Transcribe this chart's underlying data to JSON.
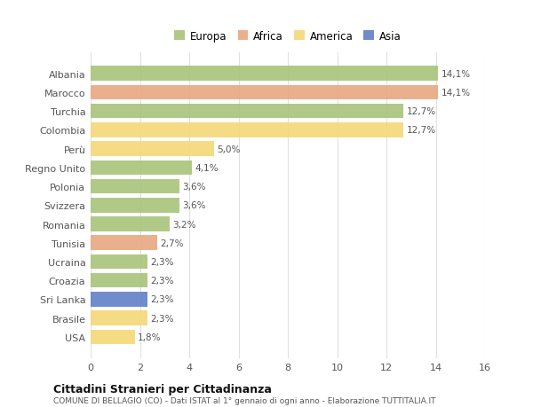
{
  "categories": [
    "Albania",
    "Marocco",
    "Turchia",
    "Colombia",
    "Perù",
    "Regno Unito",
    "Polonia",
    "Svizzera",
    "Romania",
    "Tunisia",
    "Ucraina",
    "Croazia",
    "Sri Lanka",
    "Brasile",
    "USA"
  ],
  "values": [
    14.1,
    14.1,
    12.7,
    12.7,
    5.0,
    4.1,
    3.6,
    3.6,
    3.2,
    2.7,
    2.3,
    2.3,
    2.3,
    2.3,
    1.8
  ],
  "labels": [
    "14,1%",
    "14,1%",
    "12,7%",
    "12,7%",
    "5,0%",
    "4,1%",
    "3,6%",
    "3,6%",
    "3,2%",
    "2,7%",
    "2,3%",
    "2,3%",
    "2,3%",
    "2,3%",
    "1,8%"
  ],
  "continents": [
    "Europa",
    "Africa",
    "Europa",
    "America",
    "America",
    "Europa",
    "Europa",
    "Europa",
    "Europa",
    "Africa",
    "Europa",
    "Europa",
    "Asia",
    "America",
    "America"
  ],
  "colors": {
    "Europa": "#a8c47a",
    "Africa": "#e8a882",
    "America": "#f5d878",
    "Asia": "#6080c8"
  },
  "legend_order": [
    "Europa",
    "Africa",
    "America",
    "Asia"
  ],
  "title": "Cittadini Stranieri per Cittadinanza",
  "subtitle": "COMUNE DI BELLAGIO (CO) - Dati ISTAT al 1° gennaio di ogni anno - Elaborazione TUTTITALIA.IT",
  "xlim": [
    0,
    16
  ],
  "xticks": [
    0,
    2,
    4,
    6,
    8,
    10,
    12,
    14,
    16
  ],
  "background_color": "#ffffff",
  "grid_color": "#e0e0e0"
}
